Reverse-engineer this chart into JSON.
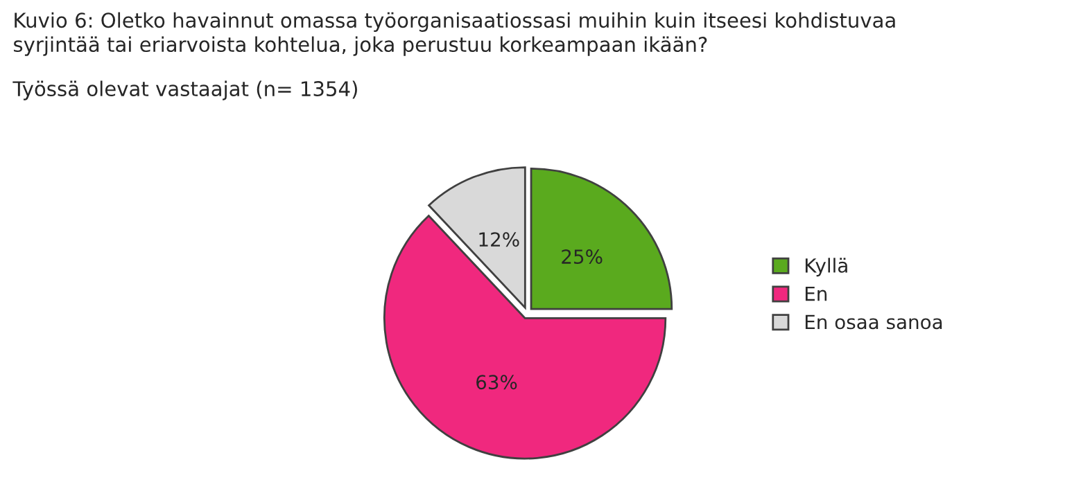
{
  "chart_data": {
    "type": "pie",
    "title": "Kuvio 6: Oletko havainnut omassa työorganisaatiossasi muihin kuin itseesi kohdistuvaa\nsyrjintää tai eriarvoista kohtelua, joka perustuu korkeampaan ikään?",
    "subtitle": "Työssä olevat vastaajat (n= 1354)",
    "categories": [
      "Kyllä",
      "En",
      "En osaa sanoa"
    ],
    "values": [
      25,
      63,
      12
    ],
    "colors": [
      "#5aaa1e",
      "#f0287e",
      "#d9d9d9"
    ],
    "value_labels": [
      "25%",
      "63%",
      "12%"
    ],
    "legend": "right"
  }
}
